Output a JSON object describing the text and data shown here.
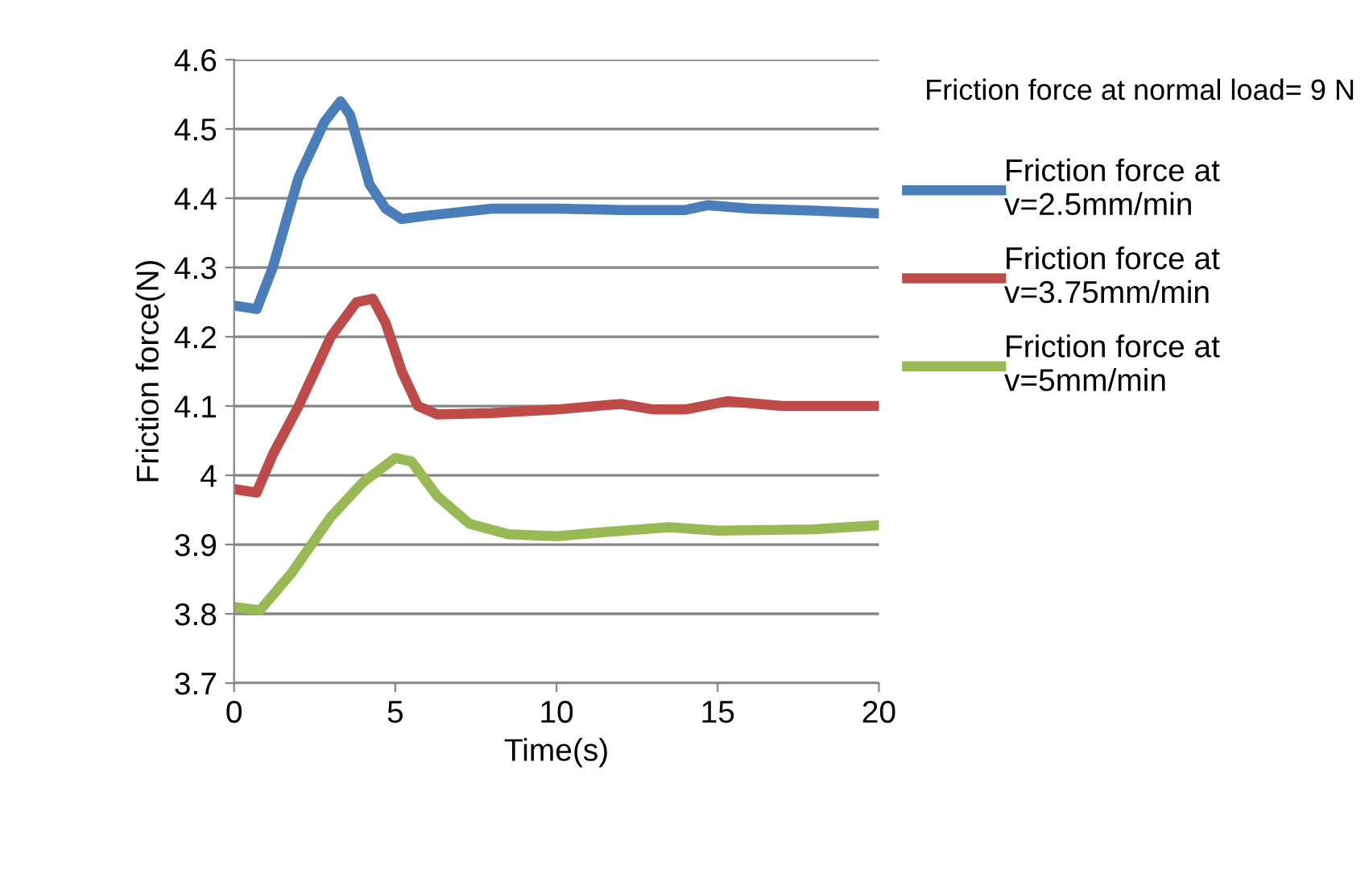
{
  "chart_data": {
    "type": "line",
    "xlabel": "Time(s)",
    "ylabel": "Friction force(N)",
    "annotations": [
      "Friction force at normal load= 9 N"
    ],
    "xlim": [
      0,
      20
    ],
    "xticks": [
      0,
      5,
      10,
      15,
      20
    ],
    "ylim": [
      3.7,
      4.6
    ],
    "yticks": [
      3.7,
      3.8,
      3.9,
      4,
      4.1,
      4.2,
      4.3,
      4.4,
      4.5,
      4.6
    ],
    "grid": "y",
    "legend": "right",
    "marker": "none",
    "line_style": "solid",
    "series": [
      {
        "name": "Friction force at\nv=2.5mm/min",
        "color": "#4a7ebb",
        "x": [
          0,
          0.7,
          1.2,
          2,
          2.8,
          3.3,
          3.6,
          4.2,
          4.7,
          5.2,
          6,
          8,
          10,
          12,
          14,
          14.7,
          16,
          18,
          20
        ],
        "values": [
          4.245,
          4.24,
          4.3,
          4.43,
          4.51,
          4.54,
          4.52,
          4.42,
          4.385,
          4.37,
          4.375,
          4.385,
          4.385,
          4.383,
          4.383,
          4.39,
          4.385,
          4.382,
          4.378
        ]
      },
      {
        "name": "Friction force at\nv=3.75mm/min",
        "color": "#be4b48",
        "x": [
          0,
          0.7,
          1.2,
          2,
          3,
          3.8,
          4.3,
          4.7,
          5.2,
          5.7,
          6.3,
          8,
          10,
          12,
          13,
          14,
          15.3,
          17,
          20
        ],
        "values": [
          3.98,
          3.975,
          4.03,
          4.1,
          4.2,
          4.25,
          4.255,
          4.22,
          4.15,
          4.1,
          4.088,
          4.09,
          4.095,
          4.103,
          4.095,
          4.095,
          4.107,
          4.1,
          4.1
        ]
      },
      {
        "name": "Friction force at\nv=5mm/min",
        "color": "#98b954",
        "x": [
          0,
          0.8,
          1.8,
          3,
          4,
          5,
          5.5,
          6.3,
          7.3,
          8.5,
          10,
          11.5,
          13.5,
          15,
          18,
          20
        ],
        "values": [
          3.81,
          3.805,
          3.86,
          3.94,
          3.99,
          4.025,
          4.02,
          3.97,
          3.93,
          3.915,
          3.912,
          3.918,
          3.925,
          3.92,
          3.922,
          3.928
        ]
      }
    ]
  }
}
